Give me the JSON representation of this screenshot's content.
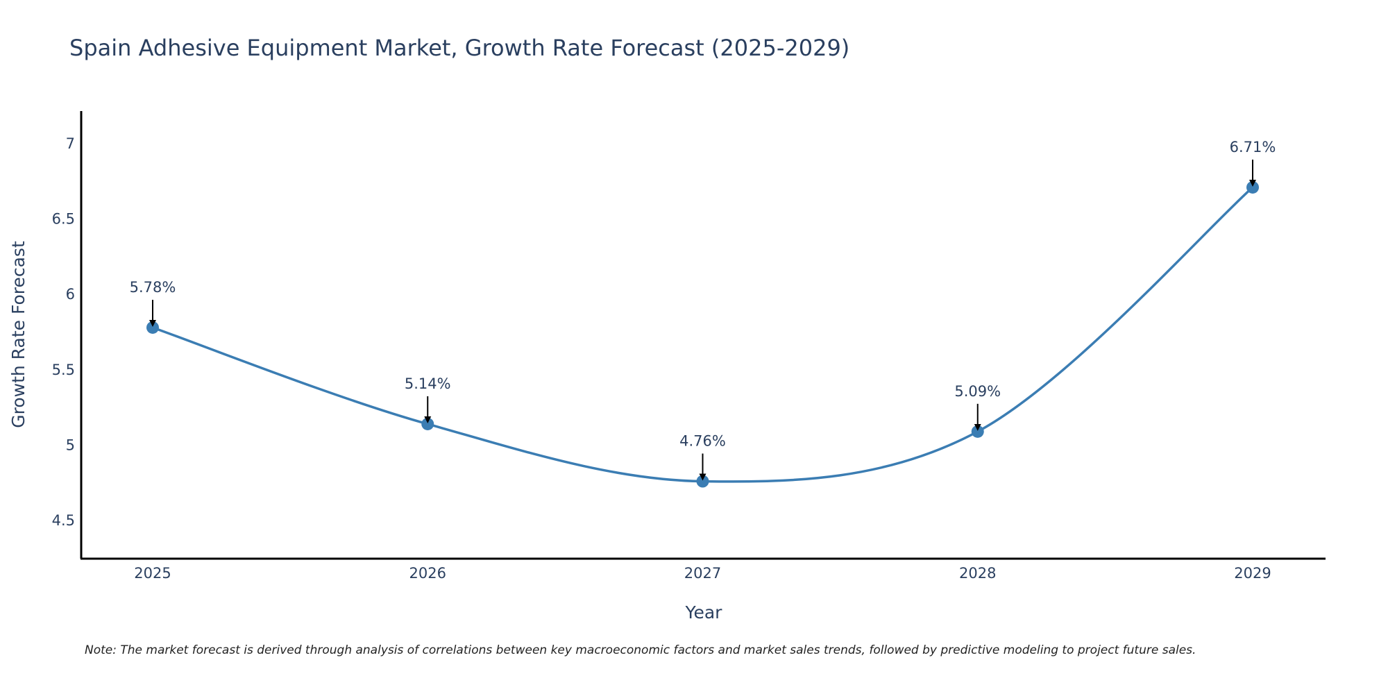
{
  "chart_data": {
    "type": "line",
    "title": "Spain Adhesive Equipment Market, Growth Rate Forecast (2025-2029)",
    "xlabel": "Year",
    "ylabel": "Growth Rate Forecast",
    "categories": [
      "2025",
      "2026",
      "2027",
      "2028",
      "2029"
    ],
    "values": [
      5.78,
      5.14,
      4.76,
      5.09,
      6.71
    ],
    "data_labels": [
      "5.78%",
      "5.14%",
      "4.76%",
      "5.09%",
      "6.71%"
    ],
    "ylim": [
      4.25,
      7.2
    ],
    "yticks": [
      4.5,
      5,
      5.5,
      6,
      6.5,
      7
    ],
    "ytick_labels": [
      "4.5",
      "5",
      "5.5",
      "6",
      "6.5",
      "7"
    ],
    "grid": false,
    "line_shape": "spline",
    "line_color": "#3b7db3",
    "marker_color": "#3b7db3",
    "arrow_color": "#000000",
    "note": "Note: The market forecast is derived through analysis of correlations between key macroeconomic factors and market sales trends, followed by predictive modeling to project future sales."
  }
}
